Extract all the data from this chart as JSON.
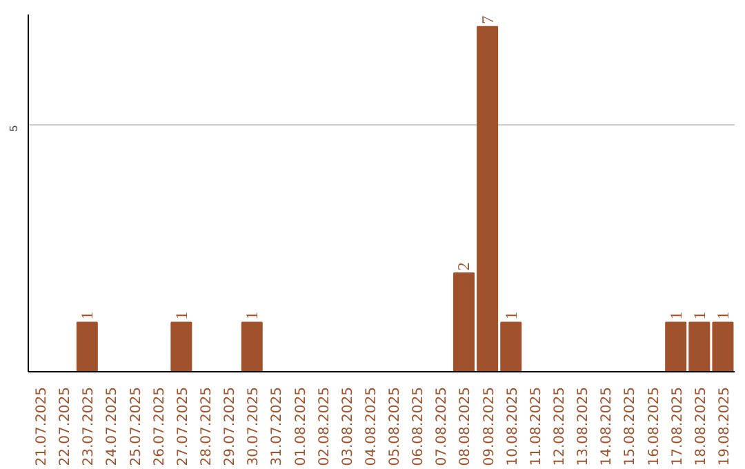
{
  "chart_data": {
    "type": "bar",
    "categories": [
      "21.07.2025",
      "22.07.2025",
      "23.07.2025",
      "24.07.2025",
      "25.07.2025",
      "26.07.2025",
      "27.07.2025",
      "28.07.2025",
      "29.07.2025",
      "30.07.2025",
      "31.07.2025",
      "01.08.2025",
      "02.08.2025",
      "03.08.2025",
      "04.08.2025",
      "05.08.2025",
      "06.08.2025",
      "07.08.2025",
      "08.08.2025",
      "09.08.2025",
      "10.08.2025",
      "11.08.2025",
      "12.08.2025",
      "13.08.2025",
      "14.08.2025",
      "15.08.2025",
      "16.08.2025",
      "17.08.2025",
      "18.08.2025",
      "19.08.2025"
    ],
    "values": [
      0,
      0,
      1,
      0,
      0,
      0,
      1,
      0,
      0,
      1,
      0,
      0,
      0,
      0,
      0,
      0,
      0,
      0,
      2,
      7,
      1,
      0,
      0,
      0,
      0,
      0,
      0,
      1,
      1,
      1
    ],
    "value_labels": [
      null,
      null,
      "1",
      null,
      null,
      null,
      "1",
      null,
      null,
      "1",
      null,
      null,
      null,
      null,
      null,
      null,
      null,
      null,
      "2",
      "7",
      "1",
      null,
      null,
      null,
      null,
      null,
      null,
      "1",
      "1",
      "1"
    ],
    "color": "#a0522d",
    "ylim": [
      0,
      7.25
    ],
    "yticks": [
      5
    ],
    "grid": "y"
  }
}
